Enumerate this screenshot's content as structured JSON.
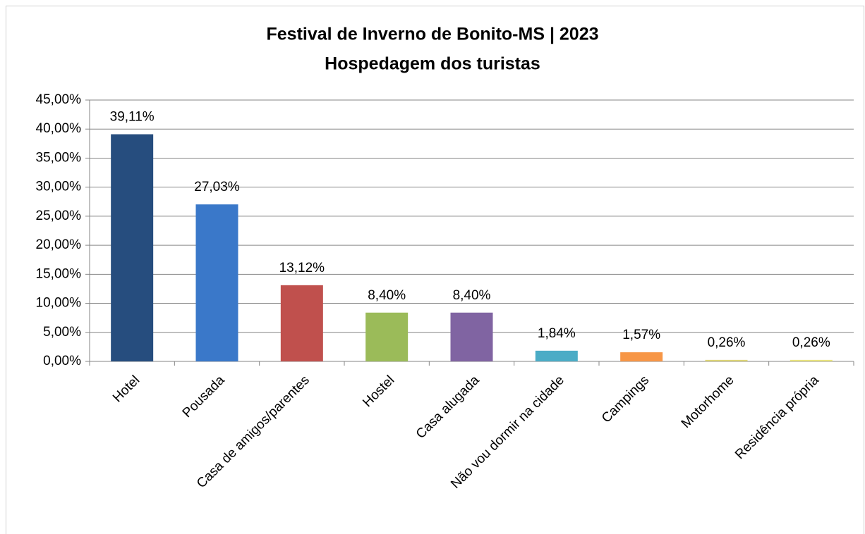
{
  "chart_data": {
    "type": "bar",
    "title": "Festival de Inverno de Bonito-MS | 2023",
    "subtitle": "Hospedagem dos turistas",
    "categories": [
      "Hotel",
      "Pousada",
      "Casa de amigos/parentes",
      "Hostel",
      "Casa alugada",
      "Não vou dormir na cidade",
      "Campings",
      "Motorhome",
      "Residência própria"
    ],
    "values": [
      39.11,
      27.03,
      13.12,
      8.4,
      8.4,
      1.84,
      1.57,
      0.26,
      0.26
    ],
    "value_labels": [
      "39,11%",
      "27,03%",
      "13,12%",
      "8,40%",
      "8,40%",
      "1,84%",
      "1,57%",
      "0,26%",
      "0,26%"
    ],
    "colors": [
      "#264d7e",
      "#3a78c9",
      "#c0504d",
      "#9bbb59",
      "#8064a2",
      "#4bacc6",
      "#f79646",
      "#dcd374",
      "#e8e27c"
    ],
    "ylim": [
      0,
      45
    ],
    "yticks": [
      {
        "value": 0,
        "label": "0,00%"
      },
      {
        "value": 5,
        "label": "5,00%"
      },
      {
        "value": 10,
        "label": "10,00%"
      },
      {
        "value": 15,
        "label": "15,00%"
      },
      {
        "value": 20,
        "label": "20,00%"
      },
      {
        "value": 25,
        "label": "25,00%"
      },
      {
        "value": 30,
        "label": "30,00%"
      },
      {
        "value": 35,
        "label": "35,00%"
      },
      {
        "value": 40,
        "label": "40,00%"
      },
      {
        "value": 45,
        "label": "45,00%"
      }
    ],
    "grid": true
  }
}
